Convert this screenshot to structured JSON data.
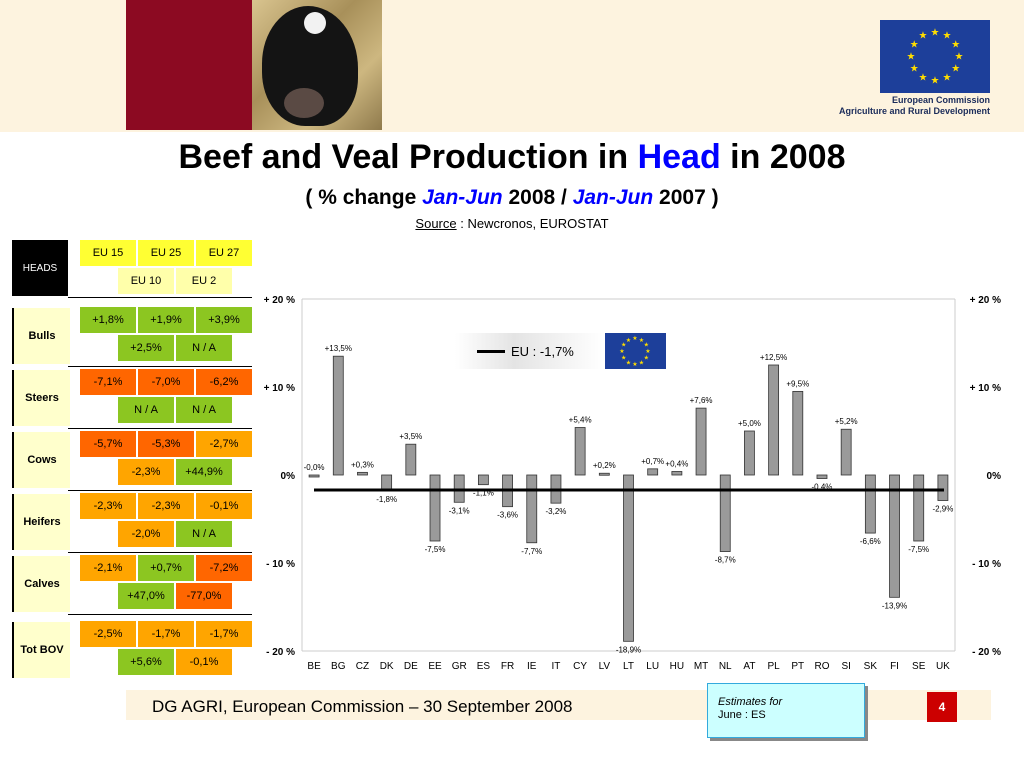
{
  "header": {
    "title_pre": "Beef and Veal Production in ",
    "title_highlight": "Head",
    "title_post": " in 2008",
    "subtitle_open": "(   % change ",
    "subtitle_period1": "Jan-Jun",
    "subtitle_year1": " 2008 / ",
    "subtitle_period2": "Jan-Jun",
    "subtitle_year2": " 2007   )",
    "source_label": "Source",
    "source_text": " : Newcronos, EUROSTAT",
    "org_line1": "European Commission",
    "org_line2": "Agriculture and Rural Development"
  },
  "table": {
    "heads_label": "HEADS",
    "group_headers": [
      "EU 15",
      "EU 25",
      "EU 27"
    ],
    "sub_headers": [
      "EU 10",
      "EU 2"
    ],
    "rows": [
      {
        "label": "Bulls",
        "eu15": "+1,8%",
        "eu25": "+1,9%",
        "eu27": "+3,9%",
        "eu10": "+2,5%",
        "eu2": "N / A"
      },
      {
        "label": "Steers",
        "eu15": "-7,1%",
        "eu25": "-7,0%",
        "eu27": "-6,2%",
        "eu10": "N / A",
        "eu2": "N / A"
      },
      {
        "label": "Cows",
        "eu15": "-5,7%",
        "eu25": "-5,3%",
        "eu27": "-2,7%",
        "eu10": "-2,3%",
        "eu2": "+44,9%"
      },
      {
        "label": "Heifers",
        "eu15": "-2,3%",
        "eu25": "-2,3%",
        "eu27": "-0,1%",
        "eu10": "-2,0%",
        "eu2": "N / A"
      },
      {
        "label": "Calves",
        "eu15": "-2,1%",
        "eu25": "+0,7%",
        "eu27": "-7,2%",
        "eu10": "+47,0%",
        "eu2": "-77,0%"
      },
      {
        "label": "Tot BOV",
        "eu15": "-2,5%",
        "eu25": "-1,7%",
        "eu27": "-1,7%",
        "eu10": "+5,6%",
        "eu2": "-0,1%"
      }
    ]
  },
  "legend": {
    "label": "EU  :  -1,7%"
  },
  "footer": {
    "text": "DG AGRI, European Commission – 30 September 2008",
    "estimates_line1": "Estimates for",
    "estimates_line2": "June : ES",
    "page": "4"
  },
  "colors": {
    "bar_fill": "#9a9a9a",
    "eu_line": "#000000",
    "title_highlight": "#0000ff",
    "green_cell": "#8cc621",
    "orange_cell": "#ff6600",
    "light_orange_cell": "#ffa500"
  },
  "chart_data": {
    "type": "bar",
    "categories": [
      "BE",
      "BG",
      "CZ",
      "DK",
      "DE",
      "EE",
      "GR",
      "ES",
      "FR",
      "IE",
      "IT",
      "CY",
      "LV",
      "LT",
      "LU",
      "HU",
      "MT",
      "NL",
      "AT",
      "PL",
      "PT",
      "RO",
      "SI",
      "SK",
      "FI",
      "SE",
      "UK"
    ],
    "values": [
      0.0,
      13.5,
      0.3,
      -1.8,
      3.5,
      -7.5,
      -3.1,
      -1.1,
      -3.6,
      -7.7,
      -3.2,
      5.4,
      0.2,
      -18.9,
      0.7,
      0.4,
      7.6,
      -8.7,
      5.0,
      12.5,
      9.5,
      -0.4,
      5.2,
      -6.6,
      -13.9,
      -7.5,
      -2.9
    ],
    "data_labels": [
      "-0,0%",
      "+13,5%",
      "+0,3%",
      "-1,8%",
      "+3,5%",
      "-7,5%",
      "-3,1%",
      "-1,1%",
      "-3,6%",
      "-7,7%",
      "-3,2%",
      "+5,4%",
      "+0,2%",
      "-18,9%",
      "+0,7%",
      "+0,4%",
      "+7,6%",
      "-8,7%",
      "+5,0%",
      "+12,5%",
      "+9,5%",
      "-0,4%",
      "+5,2%",
      "-6,6%",
      "-13,9%",
      "-7,5%",
      "-2,9%"
    ],
    "reference_line": {
      "name": "EU",
      "value": -1.7
    },
    "ylim": [
      -20,
      20
    ],
    "yticks": [
      20,
      10,
      0,
      -10,
      -20
    ],
    "ytick_labels": [
      "+ 20 %",
      "+ 10 %",
      "0%",
      "- 10 %",
      "- 20 %"
    ],
    "grid": false
  }
}
